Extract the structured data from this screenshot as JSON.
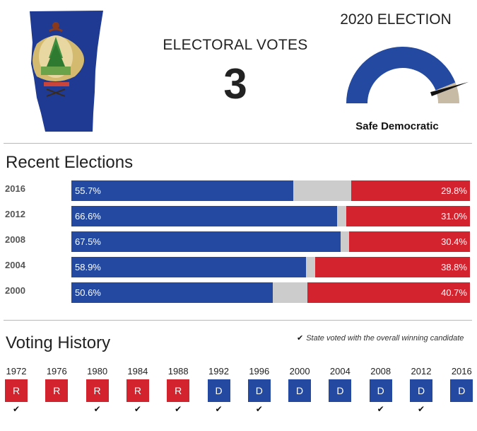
{
  "header": {
    "electoral_label": "ELECTORAL VOTES",
    "electoral_votes": "3",
    "election_title": "2020 ELECTION",
    "rating": "Safe Democratic",
    "gauge_dem_fraction": 0.88,
    "map_icon": "vermont-state-flag-map-icon",
    "colors": {
      "dem": "#2349a0",
      "rep": "#d3232f",
      "other": "#cccccc",
      "gauge_rep": "#c8bba5"
    }
  },
  "recent": {
    "title": "Recent Elections",
    "rows": [
      {
        "year": "2016",
        "dem": 55.7,
        "rep": 29.8,
        "dem_label": "55.7%",
        "rep_label": "29.8%"
      },
      {
        "year": "2012",
        "dem": 66.6,
        "rep": 31.0,
        "dem_label": "66.6%",
        "rep_label": "31.0%"
      },
      {
        "year": "2008",
        "dem": 67.5,
        "rep": 30.4,
        "dem_label": "67.5%",
        "rep_label": "30.4%"
      },
      {
        "year": "2004",
        "dem": 58.9,
        "rep": 38.8,
        "dem_label": "58.9%",
        "rep_label": "38.8%"
      },
      {
        "year": "2000",
        "dem": 50.6,
        "rep": 40.7,
        "dem_label": "50.6%",
        "rep_label": "40.7%"
      }
    ]
  },
  "history": {
    "title": "Voting History",
    "legend": "State voted with the overall winning candidate",
    "check_icon": "check-icon",
    "elections": [
      {
        "year": "1972",
        "party": "R",
        "won": true
      },
      {
        "year": "1976",
        "party": "R",
        "won": false
      },
      {
        "year": "1980",
        "party": "R",
        "won": true
      },
      {
        "year": "1984",
        "party": "R",
        "won": true
      },
      {
        "year": "1988",
        "party": "R",
        "won": true
      },
      {
        "year": "1992",
        "party": "D",
        "won": true
      },
      {
        "year": "1996",
        "party": "D",
        "won": true
      },
      {
        "year": "2000",
        "party": "D",
        "won": false
      },
      {
        "year": "2004",
        "party": "D",
        "won": false
      },
      {
        "year": "2008",
        "party": "D",
        "won": true
      },
      {
        "year": "2012",
        "party": "D",
        "won": true
      },
      {
        "year": "2016",
        "party": "D",
        "won": false
      }
    ]
  }
}
